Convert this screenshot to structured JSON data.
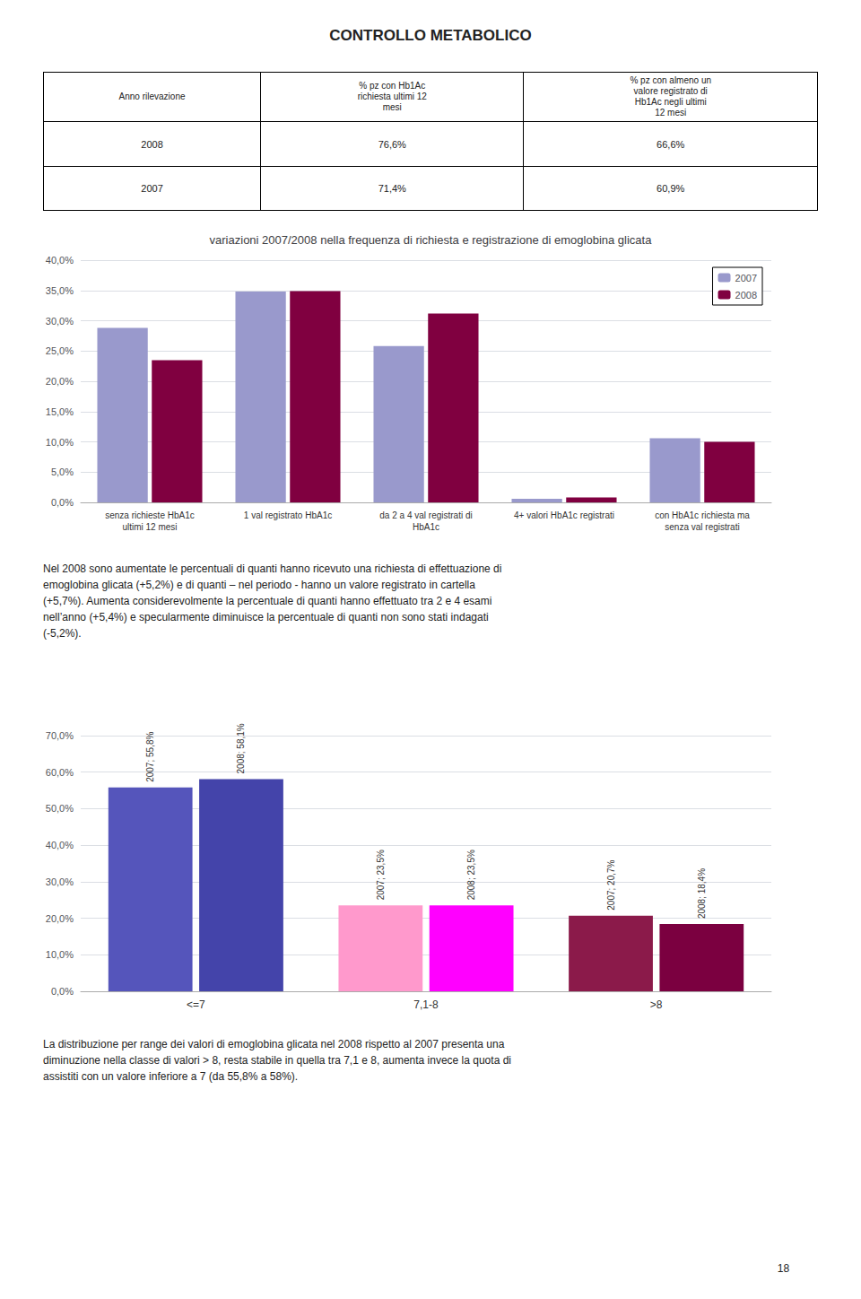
{
  "title": "CONTROLLO METABOLICO",
  "table": {
    "columns": [
      "Anno rilevazione",
      "% pz con Hb1Ac\nrichiesta ultimi 12\nmesi",
      "% pz con almeno un\nvalore registrato di\nHb1Ac negli ultimi\n12 mesi"
    ],
    "rows": [
      [
        "2008",
        "76,6%",
        "66,6%"
      ],
      [
        "2007",
        "71,4%",
        "60,9%"
      ]
    ]
  },
  "chart_data": [
    {
      "type": "bar",
      "title": "variazioni 2007/2008 nella frequenza di richiesta e registrazione di emoglobina glicata",
      "categories": [
        "senza richieste HbA1c\nultimi 12 mesi",
        "1 val registrato HbA1c",
        "da 2 a 4 val registrati di\nHbA1c",
        "4+ valori HbA1c registrati",
        "con HbA1c richiesta ma\nsenza val registrati"
      ],
      "series": [
        {
          "name": "2007",
          "color": "#9999CC",
          "values": [
            28.8,
            34.8,
            25.8,
            0.6,
            10.6
          ]
        },
        {
          "name": "2008",
          "color": "#800040",
          "values": [
            23.5,
            34.9,
            31.2,
            0.8,
            10.0
          ]
        }
      ],
      "ylim": [
        0,
        40
      ],
      "yticks": [
        {
          "value": 0,
          "label": "0,0%"
        },
        {
          "value": 5,
          "label": "5,0%"
        },
        {
          "value": 10,
          "label": "10,0%"
        },
        {
          "value": 15,
          "label": "15,0%"
        },
        {
          "value": 20,
          "label": "20,0%"
        },
        {
          "value": 25,
          "label": "25,0%"
        },
        {
          "value": 30,
          "label": "30,0%"
        },
        {
          "value": 35,
          "label": "35,0%"
        },
        {
          "value": 40,
          "label": "40,0%"
        }
      ],
      "grid": true,
      "legend": "upper right",
      "annotations": [
        "Nel 2008 sono aumentate le percentuali di quanti hanno ricevuto una richiesta di effettuazione di\nemoglobina glicata (+5,2%) e di quanti – nel periodo - hanno un valore registrato in cartella\n(+5,7%). Aumenta considerevolmente la percentuale di quanti hanno effettuato tra 2 e 4 esami\nnell’anno (+5,4%) e specularmente diminuisce la percentuale di quanti non sono stati indagati\n(-5,2%)."
      ]
    },
    {
      "type": "bar",
      "categories": [
        "<=7",
        "7,1-8",
        ">8"
      ],
      "series": [
        {
          "colors": [
            "#5555BB",
            "#FF99CC",
            "#8B1A4A"
          ],
          "values": [
            55.8,
            23.5,
            20.7
          ],
          "value_labels": [
            "2007; 55,8%",
            "2007; 23,5%",
            "2007; 20,7%"
          ]
        },
        {
          "colors": [
            "#4444AA",
            "#FF00FF",
            "#7B0040"
          ],
          "values": [
            58.1,
            23.5,
            18.4
          ],
          "value_labels": [
            "2008; 58,1%",
            "2008; 23,5%",
            "2008; 18,4%"
          ]
        }
      ],
      "ylim": [
        0,
        70
      ],
      "yticks": [
        {
          "value": 0,
          "label": "0,0%"
        },
        {
          "value": 10,
          "label": "10,0%"
        },
        {
          "value": 20,
          "label": "20,0%"
        },
        {
          "value": 30,
          "label": "30,0%"
        },
        {
          "value": 40,
          "label": "40,0%"
        },
        {
          "value": 50,
          "label": "50,0%"
        },
        {
          "value": 60,
          "label": "60,0%"
        },
        {
          "value": 70,
          "label": "70,0%"
        }
      ],
      "grid": true,
      "data_labels": true,
      "annotations": [
        "La distribuzione per range dei valori di emoglobina glicata nel 2008 rispetto al 2007 presenta una\ndiminuzione nella classe di valori > 8, resta stabile in quella tra 7,1 e 8, aumenta invece la quota di\nassistiti con un valore inferiore a 7 (da 55,8% a 58%)."
      ]
    }
  ],
  "annotations": [
    "18"
  ]
}
